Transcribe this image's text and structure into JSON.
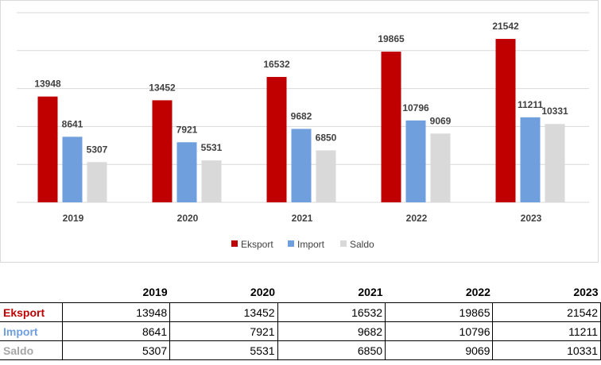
{
  "chart_data": {
    "type": "bar",
    "categories": [
      "2019",
      "2020",
      "2021",
      "2022",
      "2023"
    ],
    "series": [
      {
        "name": "Eksport",
        "color": "#c00000",
        "values": [
          13948,
          13452,
          16532,
          19865,
          21542
        ]
      },
      {
        "name": "Import",
        "color": "#6f9fdc",
        "values": [
          8641,
          7921,
          9682,
          10796,
          11211
        ]
      },
      {
        "name": "Saldo",
        "color": "#d9d9d9",
        "values": [
          5307,
          5531,
          6850,
          9069,
          10331
        ]
      }
    ],
    "ylim": [
      0,
      25000
    ],
    "grid": true,
    "legend": "bottom",
    "title": "",
    "xlabel": "",
    "ylabel": ""
  },
  "table": {
    "headers": [
      "2019",
      "2020",
      "2021",
      "2022",
      "2023"
    ],
    "rows": [
      {
        "label": "Eksport",
        "values": [
          "13948",
          "13452",
          "16532",
          "19865",
          "21542"
        ]
      },
      {
        "label": "Import",
        "values": [
          "8641",
          "7921",
          "9682",
          "10796",
          "11211"
        ]
      },
      {
        "label": "Saldo",
        "values": [
          "5307",
          "5531",
          "6850",
          "9069",
          "10331"
        ]
      }
    ]
  }
}
